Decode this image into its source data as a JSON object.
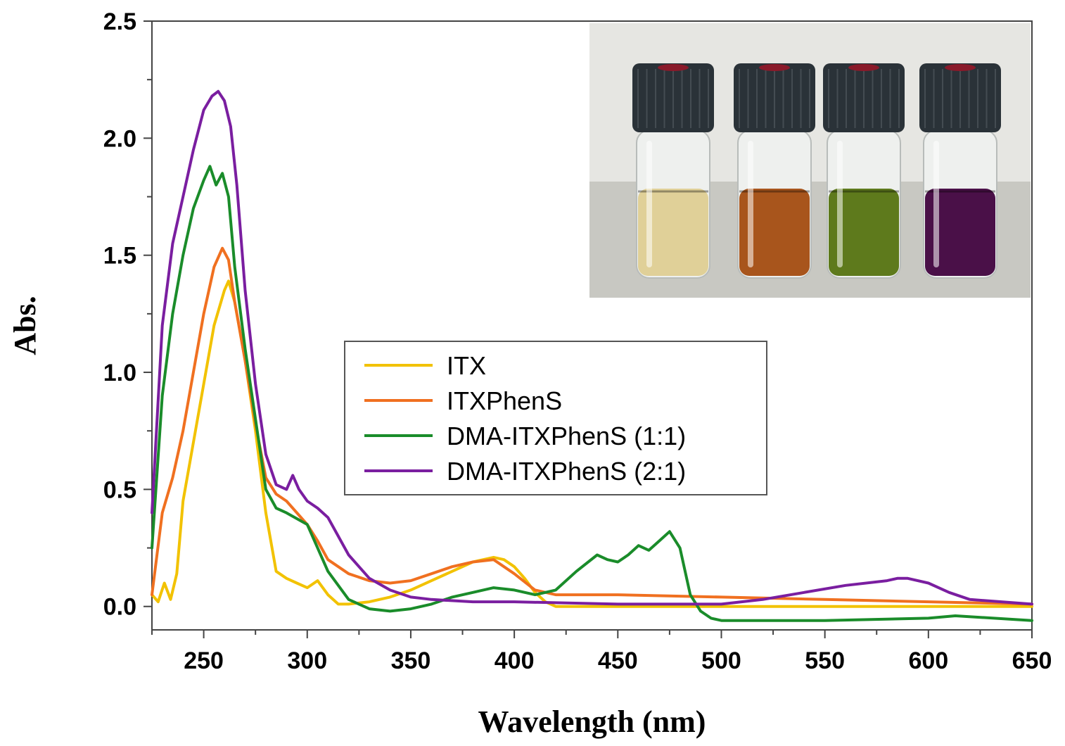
{
  "chart_data": {
    "type": "line",
    "xlabel": "Wavelength (nm)",
    "ylabel": "Abs.",
    "xlim": [
      225,
      650
    ],
    "ylim": [
      -0.1,
      2.5
    ],
    "xticks": [
      "250",
      "300",
      "350",
      "400",
      "450",
      "500",
      "550",
      "600",
      "650"
    ],
    "yticks": [
      "0.0",
      "0.5",
      "1.0",
      "1.5",
      "2.0",
      "2.5"
    ],
    "legend_position": "center",
    "grid": false,
    "series": [
      {
        "name": "ITX",
        "color": "#f2c200",
        "x": [
          225,
          228,
          231,
          234,
          237,
          240,
          245,
          250,
          255,
          260,
          262,
          265,
          270,
          275,
          280,
          285,
          290,
          295,
          300,
          305,
          310,
          315,
          320,
          330,
          340,
          350,
          360,
          370,
          380,
          390,
          395,
          400,
          405,
          410,
          415,
          420,
          450,
          500,
          550,
          600,
          650
        ],
        "y": [
          0.05,
          0.02,
          0.1,
          0.03,
          0.14,
          0.45,
          0.7,
          0.95,
          1.2,
          1.35,
          1.39,
          1.3,
          1.05,
          0.75,
          0.4,
          0.15,
          0.12,
          0.1,
          0.08,
          0.11,
          0.05,
          0.01,
          0.01,
          0.02,
          0.04,
          0.07,
          0.11,
          0.15,
          0.19,
          0.21,
          0.2,
          0.17,
          0.12,
          0.06,
          0.02,
          0.0,
          0.0,
          0.0,
          0.0,
          0.0,
          0.0
        ]
      },
      {
        "name": "ITXPhenS",
        "color": "#f07020",
        "x": [
          225,
          230,
          235,
          240,
          245,
          250,
          255,
          259,
          262,
          265,
          270,
          275,
          280,
          285,
          290,
          300,
          305,
          310,
          320,
          330,
          340,
          350,
          360,
          370,
          380,
          390,
          400,
          410,
          420,
          450,
          500,
          550,
          600,
          650
        ],
        "y": [
          0.05,
          0.4,
          0.55,
          0.75,
          1.0,
          1.25,
          1.45,
          1.53,
          1.48,
          1.3,
          1.05,
          0.78,
          0.55,
          0.48,
          0.45,
          0.35,
          0.28,
          0.2,
          0.14,
          0.11,
          0.1,
          0.11,
          0.14,
          0.17,
          0.19,
          0.2,
          0.14,
          0.07,
          0.05,
          0.05,
          0.04,
          0.03,
          0.02,
          0.01
        ]
      },
      {
        "name": "DMA-ITXPhenS (1:1)",
        "color": "#1a8c2a",
        "x": [
          225,
          230,
          235,
          240,
          245,
          250,
          253,
          256,
          259,
          262,
          265,
          270,
          275,
          280,
          285,
          290,
          300,
          310,
          320,
          330,
          340,
          350,
          360,
          370,
          380,
          390,
          400,
          410,
          420,
          430,
          440,
          445,
          450,
          455,
          460,
          465,
          470,
          475,
          480,
          485,
          490,
          495,
          500,
          550,
          600,
          613,
          650
        ],
        "y": [
          0.25,
          0.9,
          1.25,
          1.5,
          1.7,
          1.82,
          1.88,
          1.8,
          1.85,
          1.75,
          1.45,
          1.1,
          0.8,
          0.5,
          0.42,
          0.4,
          0.35,
          0.15,
          0.03,
          -0.01,
          -0.02,
          -0.01,
          0.01,
          0.04,
          0.06,
          0.08,
          0.07,
          0.05,
          0.07,
          0.15,
          0.22,
          0.2,
          0.19,
          0.22,
          0.26,
          0.24,
          0.28,
          0.32,
          0.25,
          0.05,
          -0.02,
          -0.05,
          -0.06,
          -0.06,
          -0.05,
          -0.04,
          -0.06
        ]
      },
      {
        "name": "DMA-ITXPhenS (2:1)",
        "color": "#7a1ea0",
        "x": [
          225,
          230,
          235,
          240,
          245,
          250,
          254,
          257,
          260,
          263,
          266,
          270,
          275,
          280,
          285,
          290,
          293,
          296,
          300,
          305,
          310,
          315,
          320,
          330,
          340,
          350,
          360,
          380,
          400,
          450,
          500,
          520,
          540,
          560,
          580,
          585,
          590,
          600,
          610,
          620,
          650
        ],
        "y": [
          0.4,
          1.2,
          1.55,
          1.75,
          1.95,
          2.12,
          2.18,
          2.2,
          2.16,
          2.05,
          1.8,
          1.35,
          0.95,
          0.65,
          0.52,
          0.5,
          0.56,
          0.5,
          0.45,
          0.42,
          0.38,
          0.3,
          0.22,
          0.12,
          0.07,
          0.04,
          0.03,
          0.02,
          0.02,
          0.01,
          0.01,
          0.03,
          0.06,
          0.09,
          0.11,
          0.12,
          0.12,
          0.1,
          0.06,
          0.03,
          0.01
        ]
      }
    ]
  },
  "inset": {
    "vial_colors": [
      "#e0d098",
      "#a8551c",
      "#5e7a1c",
      "#4a1048"
    ],
    "cap_color": "#2a3238",
    "wall_color": "#e6e6e2",
    "table_color": "#c8c8c2"
  }
}
